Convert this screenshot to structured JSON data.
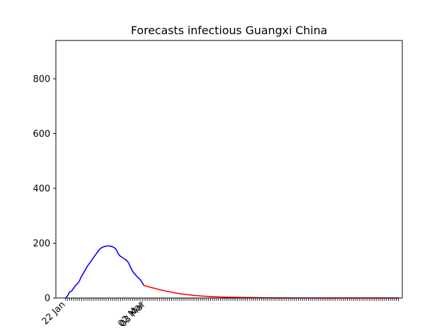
{
  "chart_data": {
    "type": "line",
    "title": "Forecasts infectious Guangxi China",
    "xlabel": "",
    "ylabel": "",
    "ylim": [
      0,
      940
    ],
    "yticks": [
      0,
      200,
      400,
      600,
      800
    ],
    "x_tick_labels": [
      {
        "day": 0,
        "label": "22 Jan"
      },
      {
        "day": 40,
        "label": "02 Mar"
      },
      {
        "day": 41,
        "label": "03 Mar"
      }
    ],
    "x_range_days": [
      -5,
      172
    ],
    "grid": false,
    "legend": "none",
    "colors": {
      "observed": "#0000ff",
      "forecast": "#ff0000"
    },
    "series": [
      {
        "role": "observed",
        "color": "#0000ff",
        "x": [
          0,
          1,
          2,
          3,
          4,
          5,
          6,
          7,
          8,
          9,
          10,
          11,
          12,
          13,
          14,
          15,
          16,
          17,
          18,
          19,
          20,
          21,
          22,
          23,
          24,
          25,
          26,
          27,
          28,
          29,
          30,
          31,
          32,
          33,
          34,
          35,
          36,
          37,
          38,
          39,
          40
        ],
        "y": [
          0,
          8,
          22,
          25,
          35,
          45,
          52,
          62,
          78,
          90,
          102,
          115,
          125,
          135,
          145,
          155,
          165,
          175,
          182,
          186,
          188,
          190,
          190,
          189,
          187,
          183,
          175,
          160,
          152,
          148,
          143,
          138,
          130,
          115,
          100,
          90,
          82,
          74,
          68,
          57,
          46
        ]
      },
      {
        "role": "forecast",
        "color": "#ff0000",
        "x": [
          40,
          45,
          50,
          55,
          60,
          65,
          70,
          75,
          80,
          90,
          100,
          110,
          120,
          130,
          140,
          150,
          160,
          165,
          170
        ],
        "y": [
          46,
          36,
          27,
          20,
          14,
          10,
          7,
          5,
          3.5,
          2,
          1,
          0.5,
          0.3,
          0.2,
          0.1,
          0.1,
          0.1,
          0.1,
          0.1
        ]
      }
    ]
  }
}
